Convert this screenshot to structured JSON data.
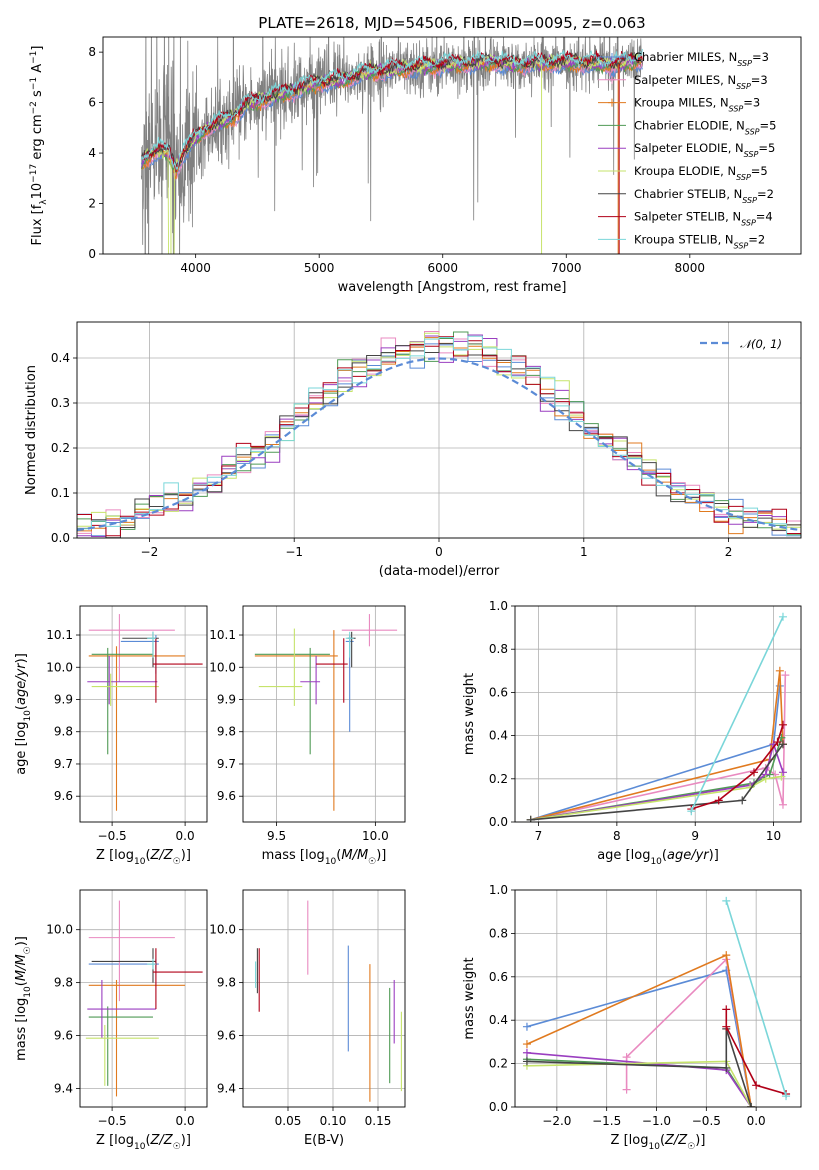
{
  "colors": {
    "chabrier_miles": "#5b8bd6",
    "salpeter_miles": "#e98ac0",
    "kroupa_miles": "#e07a1f",
    "chabrier_elodie": "#4f9a55",
    "salpeter_elodie": "#9a3ec0",
    "kroupa_elodie": "#c6e36b",
    "chabrier_stelib": "#444444",
    "salpeter_stelib": "#b00018",
    "kroupa_stelib": "#7ad6d9",
    "data": "#808080"
  },
  "chart_data": [
    {
      "type": "line",
      "title": "PLATE=2618, MJD=54506, FIBERID=0095, z=0.063",
      "xlabel": "wavelength [Angstrom, rest frame]",
      "ylabel": "Flux [f_λ 10^-17 erg cm^-2 s^-1 A^-1]",
      "xlim": [
        3250,
        8900
      ],
      "ylim": [
        0,
        8.6
      ],
      "xticks": [
        "4000",
        "5000",
        "6000",
        "7000",
        "8000"
      ],
      "yticks": [
        "0",
        "2",
        "4",
        "6",
        "8"
      ],
      "legend": {
        "placement": "right",
        "entries": [
          {
            "label": "Chabrier MILES, N",
            "sub": "SSP",
            "suffix": "=3",
            "color_key": "chabrier_miles"
          },
          {
            "label": "Salpeter MILES, N",
            "sub": "SSP",
            "suffix": "=3",
            "color_key": "salpeter_miles"
          },
          {
            "label": "Kroupa MILES, N",
            "sub": "SSP",
            "suffix": "=3",
            "color_key": "kroupa_miles"
          },
          {
            "label": "Chabrier ELODIE, N",
            "sub": "SSP",
            "suffix": "=5",
            "color_key": "chabrier_elodie"
          },
          {
            "label": "Salpeter ELODIE, N",
            "sub": "SSP",
            "suffix": "=5",
            "color_key": "salpeter_elodie"
          },
          {
            "label": "Kroupa ELODIE, N",
            "sub": "SSP",
            "suffix": "=5",
            "color_key": "kroupa_elodie"
          },
          {
            "label": "Chabrier STELIB, N",
            "sub": "SSP",
            "suffix": "=2",
            "color_key": "chabrier_stelib"
          },
          {
            "label": "Salpeter STELIB, N",
            "sub": "SSP",
            "suffix": "=4",
            "color_key": "salpeter_stelib"
          },
          {
            "label": "Kroupa STELIB, N",
            "sub": "SSP",
            "suffix": "=2",
            "color_key": "kroupa_stelib"
          }
        ]
      },
      "continuum": [
        [
          3560,
          3.6
        ],
        [
          3620,
          3.9
        ],
        [
          3700,
          4.1
        ],
        [
          3780,
          4.0
        ],
        [
          3840,
          3.3
        ],
        [
          3900,
          4.0
        ],
        [
          3950,
          4.3
        ],
        [
          4000,
          4.6
        ],
        [
          4100,
          5.0
        ],
        [
          4200,
          5.2
        ],
        [
          4300,
          5.4
        ],
        [
          4400,
          5.9
        ],
        [
          4600,
          6.2
        ],
        [
          4800,
          6.5
        ],
        [
          5000,
          6.8
        ],
        [
          5200,
          6.9
        ],
        [
          5400,
          7.2
        ],
        [
          5600,
          7.3
        ],
        [
          5800,
          7.4
        ],
        [
          6000,
          7.5
        ],
        [
          6200,
          7.55
        ],
        [
          6400,
          7.6
        ],
        [
          6600,
          7.5
        ],
        [
          6800,
          7.55
        ],
        [
          7000,
          7.6
        ],
        [
          7200,
          7.55
        ],
        [
          7400,
          7.5
        ],
        [
          7600,
          7.7
        ]
      ],
      "data_wavelength_range": [
        3560,
        7620
      ],
      "model_dips": [
        3800,
        6800,
        7420
      ]
    },
    {
      "type": "histogram",
      "xlabel": "(data-model)/error",
      "ylabel": "Normed distribution",
      "xlim": [
        -2.5,
        2.5
      ],
      "ylim": [
        0,
        0.48
      ],
      "xticks": [
        "−2",
        "−1",
        "0",
        "1",
        "2"
      ],
      "yticks": [
        "0.0",
        "0.1",
        "0.2",
        "0.3",
        "0.4"
      ],
      "grid": true,
      "bin_width": 0.1,
      "reference_curve": {
        "label": "𝒩(0, 1)",
        "color": "#5b8bd6",
        "style": "dashed"
      },
      "legend": {
        "placement": "top-right"
      }
    },
    {
      "type": "errorbar",
      "xlabel": "Z [log10(Z/Z☉)]",
      "ylabel": "age [log10(age/yr)]",
      "xlim": [
        -0.72,
        0.15
      ],
      "ylim": [
        9.52,
        10.19
      ],
      "xticks": [
        "−0.5",
        "0.0"
      ],
      "yticks": [
        "9.6",
        "9.7",
        "9.8",
        "9.9",
        "10.0",
        "10.1"
      ],
      "grid": true,
      "points": [
        {
          "color_key": "chabrier_miles",
          "x": -0.2,
          "xerr": [
            0.24,
            0.02
          ],
          "y": 10.08,
          "yerr": [
            0.1,
            0.02
          ]
        },
        {
          "color_key": "salpeter_miles",
          "x": -0.45,
          "xerr": [
            0.21,
            0.38
          ],
          "y": 10.115,
          "yerr": [
            0.16,
            0.05
          ]
        },
        {
          "color_key": "kroupa_miles",
          "x": -0.47,
          "xerr": [
            0.19,
            0.47
          ],
          "y": 10.035,
          "yerr": [
            0.48,
            0.03
          ]
        },
        {
          "color_key": "chabrier_elodie",
          "x": -0.53,
          "xerr": [
            0.11,
            0.31
          ],
          "y": 10.04,
          "yerr": [
            0.31,
            0.02
          ]
        },
        {
          "color_key": "salpeter_elodie",
          "x": -0.52,
          "xerr": [
            0.15,
            0.33
          ],
          "y": 9.955,
          "yerr": [
            0.07,
            0.08
          ]
        },
        {
          "color_key": "kroupa_elodie",
          "x": -0.51,
          "xerr": [
            0.13,
            0.33
          ],
          "y": 9.94,
          "yerr": [
            0.06,
            0.04
          ]
        },
        {
          "color_key": "chabrier_stelib",
          "x": -0.22,
          "xerr": [
            0.21,
            0.04
          ],
          "y": 10.09,
          "yerr": [
            0.09,
            0.02
          ]
        },
        {
          "color_key": "salpeter_stelib",
          "x": -0.2,
          "xerr": [
            0.02,
            0.32
          ],
          "y": 10.01,
          "yerr": [
            0.12,
            0.08
          ]
        },
        {
          "color_key": "kroupa_stelib",
          "x": -0.22,
          "xerr": [
            0.04,
            0.02
          ],
          "y": 10.09,
          "yerr": [
            0.06,
            0.02
          ]
        }
      ]
    },
    {
      "type": "errorbar",
      "xlabel": "mass [log10(M/M☉)]",
      "xlim": [
        9.33,
        10.15
      ],
      "ylim": [
        9.52,
        10.19
      ],
      "xticks": [
        "9.5",
        "10.0"
      ],
      "yticks": [
        "9.6",
        "9.7",
        "9.8",
        "9.9",
        "10.0",
        "10.1"
      ],
      "grid": true,
      "points": [
        {
          "color_key": "chabrier_miles",
          "x": 9.87,
          "xerr": [
            0.02,
            0.02
          ],
          "y": 10.08,
          "yerr": [
            0.28,
            0.02
          ]
        },
        {
          "color_key": "salpeter_miles",
          "x": 9.97,
          "xerr": [
            0.14,
            0.14
          ],
          "y": 10.115,
          "yerr": [
            0.05,
            0.05
          ]
        },
        {
          "color_key": "kroupa_miles",
          "x": 9.79,
          "xerr": [
            0.4,
            0.02
          ],
          "y": 10.035,
          "yerr": [
            0.48,
            0.08
          ]
        },
        {
          "color_key": "chabrier_elodie",
          "x": 9.67,
          "xerr": [
            0.28,
            0.1
          ],
          "y": 10.04,
          "yerr": [
            0.31,
            0.02
          ]
        },
        {
          "color_key": "salpeter_elodie",
          "x": 9.7,
          "xerr": [
            0.08,
            0.02
          ],
          "y": 9.955,
          "yerr": [
            0.07,
            0.08
          ]
        },
        {
          "color_key": "kroupa_elodie",
          "x": 9.59,
          "xerr": [
            0.18,
            0.04
          ],
          "y": 9.94,
          "yerr": [
            0.06,
            0.18
          ]
        },
        {
          "color_key": "chabrier_stelib",
          "x": 9.88,
          "xerr": [
            0.02,
            0.02
          ],
          "y": 10.09,
          "yerr": [
            0.09,
            0.02
          ]
        },
        {
          "color_key": "salpeter_stelib",
          "x": 9.84,
          "xerr": [
            0.14,
            0.02
          ],
          "y": 10.01,
          "yerr": [
            0.12,
            0.08
          ]
        },
        {
          "color_key": "kroupa_stelib",
          "x": 9.87,
          "xerr": [
            0.02,
            0.02
          ],
          "y": 10.09,
          "yerr": [
            0.06,
            0.02
          ]
        }
      ]
    },
    {
      "type": "line",
      "xlabel": "age [log10(age/yr)]",
      "ylabel": "mass weight",
      "xlim": [
        6.7,
        10.35
      ],
      "ylim": [
        0,
        1
      ],
      "xticks": [
        "7",
        "8",
        "9",
        "10"
      ],
      "yticks": [
        "0.0",
        "0.2",
        "0.4",
        "0.6",
        "0.8",
        "1.0"
      ],
      "grid": true,
      "series": [
        {
          "color_key": "chabrier_miles",
          "x": [
            6.9,
            10.0,
            10.08
          ],
          "y": [
            0.01,
            0.36,
            0.63
          ]
        },
        {
          "color_key": "salpeter_miles",
          "x": [
            6.9,
            9.9,
            10.02,
            10.12,
            10.15
          ],
          "y": [
            0.01,
            0.25,
            0.22,
            0.08,
            0.68
          ]
        },
        {
          "color_key": "kroupa_miles",
          "x": [
            6.9,
            9.95,
            10.08,
            10.12
          ],
          "y": [
            0.01,
            0.29,
            0.7,
            0.36
          ]
        },
        {
          "color_key": "chabrier_elodie",
          "x": [
            6.9,
            9.75,
            9.95,
            10.1
          ],
          "y": [
            0.01,
            0.18,
            0.22,
            0.39
          ]
        },
        {
          "color_key": "salpeter_elodie",
          "x": [
            6.9,
            9.7,
            9.9,
            10.0,
            10.12
          ],
          "y": [
            0.01,
            0.17,
            0.22,
            0.36,
            0.23
          ]
        },
        {
          "color_key": "kroupa_elodie",
          "x": [
            6.9,
            9.7,
            9.9,
            10.1
          ],
          "y": [
            0.01,
            0.16,
            0.2,
            0.21
          ]
        },
        {
          "color_key": "chabrier_stelib",
          "x": [
            6.9,
            9.6,
            10.12
          ],
          "y": [
            0.01,
            0.1,
            0.36
          ]
        },
        {
          "color_key": "salpeter_stelib",
          "x": [
            8.95,
            9.3,
            9.75,
            10.05,
            10.12
          ],
          "y": [
            0.06,
            0.1,
            0.23,
            0.37,
            0.45
          ]
        },
        {
          "color_key": "kroupa_stelib",
          "x": [
            8.95,
            10.12
          ],
          "y": [
            0.05,
            0.95
          ]
        }
      ]
    },
    {
      "type": "errorbar",
      "xlabel": "Z [log10(Z/Z☉)]",
      "ylabel": "mass [log10(M/M☉)]",
      "xlim": [
        -0.72,
        0.15
      ],
      "ylim": [
        9.33,
        10.15
      ],
      "xticks": [
        "−0.5",
        "0.0"
      ],
      "yticks": [
        "9.4",
        "9.6",
        "9.8",
        "10.0"
      ],
      "grid": true,
      "points": [
        {
          "color_key": "chabrier_miles",
          "x": -0.2,
          "xerr": [
            0.46,
            0.02
          ],
          "y": 9.87,
          "yerr": [
            0.02,
            0.02
          ]
        },
        {
          "color_key": "salpeter_miles",
          "x": -0.45,
          "xerr": [
            0.21,
            0.38
          ],
          "y": 9.97,
          "yerr": [
            0.24,
            0.14
          ]
        },
        {
          "color_key": "kroupa_miles",
          "x": -0.47,
          "xerr": [
            0.19,
            0.47
          ],
          "y": 9.79,
          "yerr": [
            0.42,
            0.02
          ]
        },
        {
          "color_key": "chabrier_elodie",
          "x": -0.53,
          "xerr": [
            0.13,
            0.31
          ],
          "y": 9.67,
          "yerr": [
            0.26,
            0.04
          ]
        },
        {
          "color_key": "salpeter_elodie",
          "x": -0.57,
          "xerr": [
            0.1,
            0.37
          ],
          "y": 9.7,
          "yerr": [
            0.11,
            0.11
          ]
        },
        {
          "color_key": "kroupa_elodie",
          "x": -0.55,
          "xerr": [
            0.13,
            0.37
          ],
          "y": 9.59,
          "yerr": [
            0.18,
            0.05
          ]
        },
        {
          "color_key": "chabrier_stelib",
          "x": -0.22,
          "xerr": [
            0.42,
            0.02
          ],
          "y": 9.88,
          "yerr": [
            0.08,
            0.05
          ]
        },
        {
          "color_key": "salpeter_stelib",
          "x": -0.2,
          "xerr": [
            0.02,
            0.32
          ],
          "y": 9.84,
          "yerr": [
            0.14,
            0.09
          ]
        },
        {
          "color_key": "kroupa_stelib",
          "x": -0.22,
          "xerr": [
            0.04,
            0.02
          ],
          "y": 9.87,
          "yerr": [
            0.02,
            0.02
          ]
        }
      ]
    },
    {
      "type": "errorbar",
      "xlabel": "E(B-V)",
      "xlim": [
        0.0,
        0.18
      ],
      "ylim": [
        9.33,
        10.15
      ],
      "xticks": [
        "0.05",
        "0.10",
        "0.15"
      ],
      "yticks": [
        "9.4",
        "9.6",
        "9.8",
        "10.0"
      ],
      "grid": true,
      "points": [
        {
          "color_key": "chabrier_miles",
          "x": 0.117,
          "y": 9.74,
          "yerr": [
            0.2,
            0.2
          ]
        },
        {
          "color_key": "salpeter_miles",
          "x": 0.072,
          "y": 9.97,
          "yerr": [
            0.14,
            0.14
          ]
        },
        {
          "color_key": "kroupa_miles",
          "x": 0.141,
          "y": 9.62,
          "yerr": [
            0.27,
            0.25
          ]
        },
        {
          "color_key": "chabrier_elodie",
          "x": 0.163,
          "y": 9.6,
          "yerr": [
            0.18,
            0.18
          ]
        },
        {
          "color_key": "salpeter_elodie",
          "x": 0.168,
          "y": 9.69,
          "yerr": [
            0.12,
            0.12
          ]
        },
        {
          "color_key": "kroupa_elodie",
          "x": 0.176,
          "y": 9.56,
          "yerr": [
            0.17,
            0.13
          ]
        },
        {
          "color_key": "chabrier_stelib",
          "x": 0.016,
          "y": 9.88,
          "yerr": [
            0.12,
            0.05
          ]
        },
        {
          "color_key": "salpeter_stelib",
          "x": 0.018,
          "y": 9.81,
          "yerr": [
            0.12,
            0.12
          ]
        },
        {
          "color_key": "kroupa_stelib",
          "x": 0.014,
          "y": 9.86,
          "yerr": [
            0.08,
            0.02
          ]
        }
      ]
    },
    {
      "type": "line",
      "xlabel": "Z [log10(Z/Z☉)]",
      "ylabel": "mass weight",
      "xlim": [
        -2.42,
        0.45
      ],
      "ylim": [
        0,
        1
      ],
      "xticks": [
        "−2.0",
        "−1.5",
        "−1.0",
        "−0.5",
        "0.0"
      ],
      "yticks": [
        "0.0",
        "0.2",
        "0.4",
        "0.6",
        "0.8",
        "1.0"
      ],
      "grid": true,
      "series": [
        {
          "color_key": "chabrier_miles",
          "x": [
            -2.3,
            -0.3,
            -0.05
          ],
          "y": [
            0.37,
            0.63,
            0.0
          ]
        },
        {
          "color_key": "salpeter_miles",
          "x": [
            -1.3,
            -1.3,
            -0.3,
            -0.05
          ],
          "y": [
            0.08,
            0.23,
            0.68,
            0.0
          ]
        },
        {
          "color_key": "kroupa_miles",
          "x": [
            -2.3,
            -0.3,
            -0.05
          ],
          "y": [
            0.29,
            0.7,
            0.0
          ]
        },
        {
          "color_key": "chabrier_elodie",
          "x": [
            -2.3,
            -0.3,
            -0.05
          ],
          "y": [
            0.22,
            0.18,
            0.0
          ]
        },
        {
          "color_key": "salpeter_elodie",
          "x": [
            -2.3,
            -0.3,
            -0.05
          ],
          "y": [
            0.25,
            0.17,
            0.0
          ]
        },
        {
          "color_key": "kroupa_elodie",
          "x": [
            -2.3,
            -0.3,
            -0.05
          ],
          "y": [
            0.19,
            0.21,
            0.0
          ]
        },
        {
          "color_key": "chabrier_stelib",
          "x": [
            -2.3,
            -0.3,
            -0.3,
            -0.05
          ],
          "y": [
            0.21,
            0.18,
            0.36,
            0.0
          ]
        },
        {
          "color_key": "salpeter_stelib",
          "x": [
            -0.3,
            -0.3,
            0.0,
            0.3
          ],
          "y": [
            0.45,
            0.37,
            0.1,
            0.06
          ]
        },
        {
          "color_key": "kroupa_stelib",
          "x": [
            -0.3,
            0.3
          ],
          "y": [
            0.95,
            0.05
          ]
        }
      ]
    }
  ]
}
